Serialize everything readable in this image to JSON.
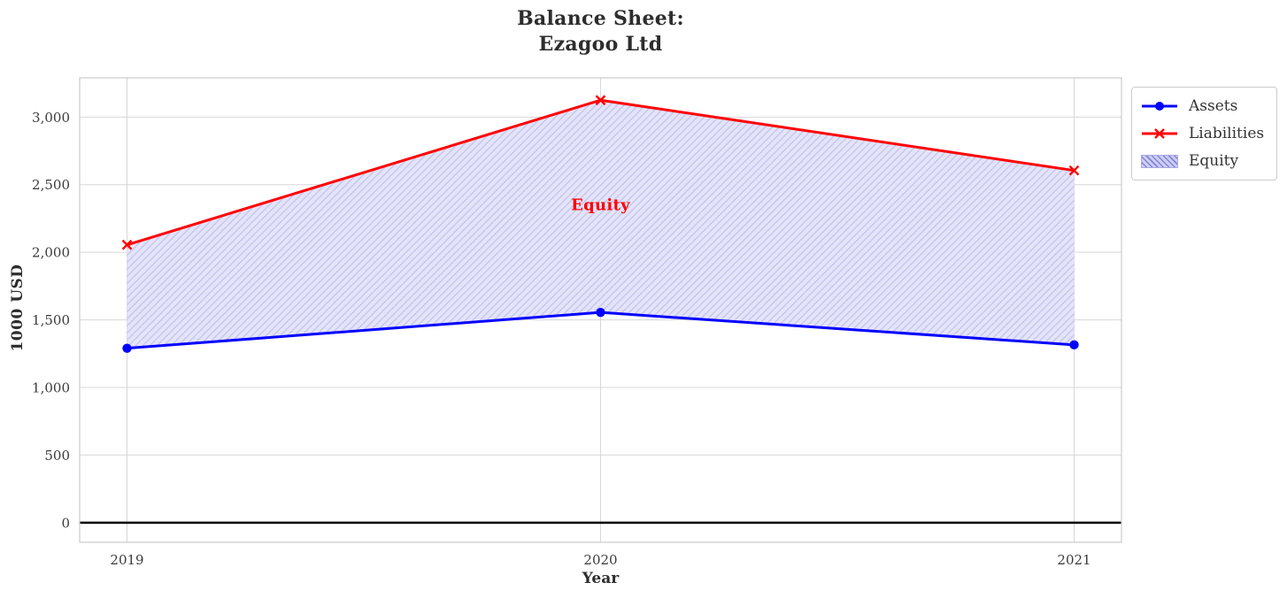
{
  "chart_data": {
    "type": "line",
    "title": "Balance Sheet:\nEzagoo Ltd",
    "xlabel": "Year",
    "ylabel": "1000 USD",
    "x": [
      2019,
      2020,
      2021
    ],
    "x_tick_labels": [
      "2019",
      "2020",
      "2021"
    ],
    "y_ticks": [
      0,
      500,
      1000,
      1500,
      2000,
      2500,
      3000
    ],
    "y_tick_labels": [
      "0",
      "500",
      "1,000",
      "1,500",
      "2,000",
      "2,500",
      "3,000"
    ],
    "xlim": [
      2018.9,
      2021.1
    ],
    "ylim": [
      -145,
      3290
    ],
    "grid": true,
    "zero_line": true,
    "series": [
      {
        "name": "Assets",
        "values": [
          1290,
          1555,
          1315
        ],
        "color": "#0000ff",
        "marker": "circle",
        "linewidth": 3
      },
      {
        "name": "Liabilities",
        "values": [
          2055,
          3125,
          2605
        ],
        "color": "#ff0000",
        "marker": "x",
        "linewidth": 3
      }
    ],
    "fill_between": {
      "label": "Equity",
      "between": [
        "Assets",
        "Liabilities"
      ],
      "facecolor": "#e4e4f9",
      "hatch": "//",
      "hatch_color": "#c9c9f0",
      "legend_patch": {
        "facecolor": "#cdcdf0",
        "hatch_color": "#8383dc",
        "border_color": "#a9a9e6"
      }
    },
    "annotation": {
      "text": "Equity",
      "x": 2020,
      "y": 2350,
      "color": "#ff0000"
    },
    "legend": {
      "position": "outside-upper-right",
      "entries": [
        "Assets",
        "Liabilities",
        "Equity"
      ]
    },
    "style": {
      "grid_color": "#d7d7d7",
      "spine_color": "#cccccc",
      "zero_line_color": "#000000",
      "title_color": "#2d2d2d",
      "tick_color": "#3b3b3b"
    }
  }
}
